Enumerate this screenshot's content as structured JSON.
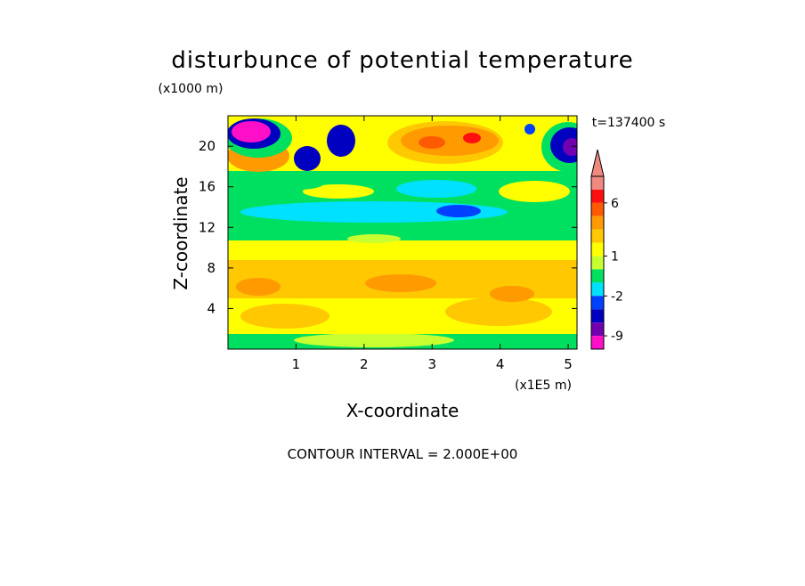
{
  "chart_data": {
    "type": "contour",
    "title": "disturbunce of potential temperature",
    "y_unit": "(x1000 m)",
    "ylabel": "Z-coordinate",
    "xlabel": "X-coordinate",
    "x_unit": "(x1E5 m)",
    "time_label": "t=137400 s",
    "footer": "CONTOUR INTERVAL = 2.000E+00",
    "xlim": [
      0,
      5.13
    ],
    "xticks": [
      1,
      2,
      3,
      4,
      5
    ],
    "ylim": [
      0,
      23
    ],
    "yticks": [
      4,
      8,
      12,
      16,
      20
    ],
    "colorbar": {
      "colors": [
        "#f08a80",
        "#f08a80",
        "#ff1010",
        "#ff5a00",
        "#ff9a00",
        "#ffc800",
        "#ffff00",
        "#c8ff30",
        "#00e060",
        "#00e0ff",
        "#0040ff",
        "#0000c0",
        "#7000b0",
        "#ff10c8"
      ],
      "levels": [
        12,
        8,
        6,
        4,
        3,
        2,
        1,
        0,
        -1,
        -2,
        -3,
        -6,
        -9
      ],
      "ticks": [
        6,
        1,
        -2,
        -9
      ]
    }
  }
}
